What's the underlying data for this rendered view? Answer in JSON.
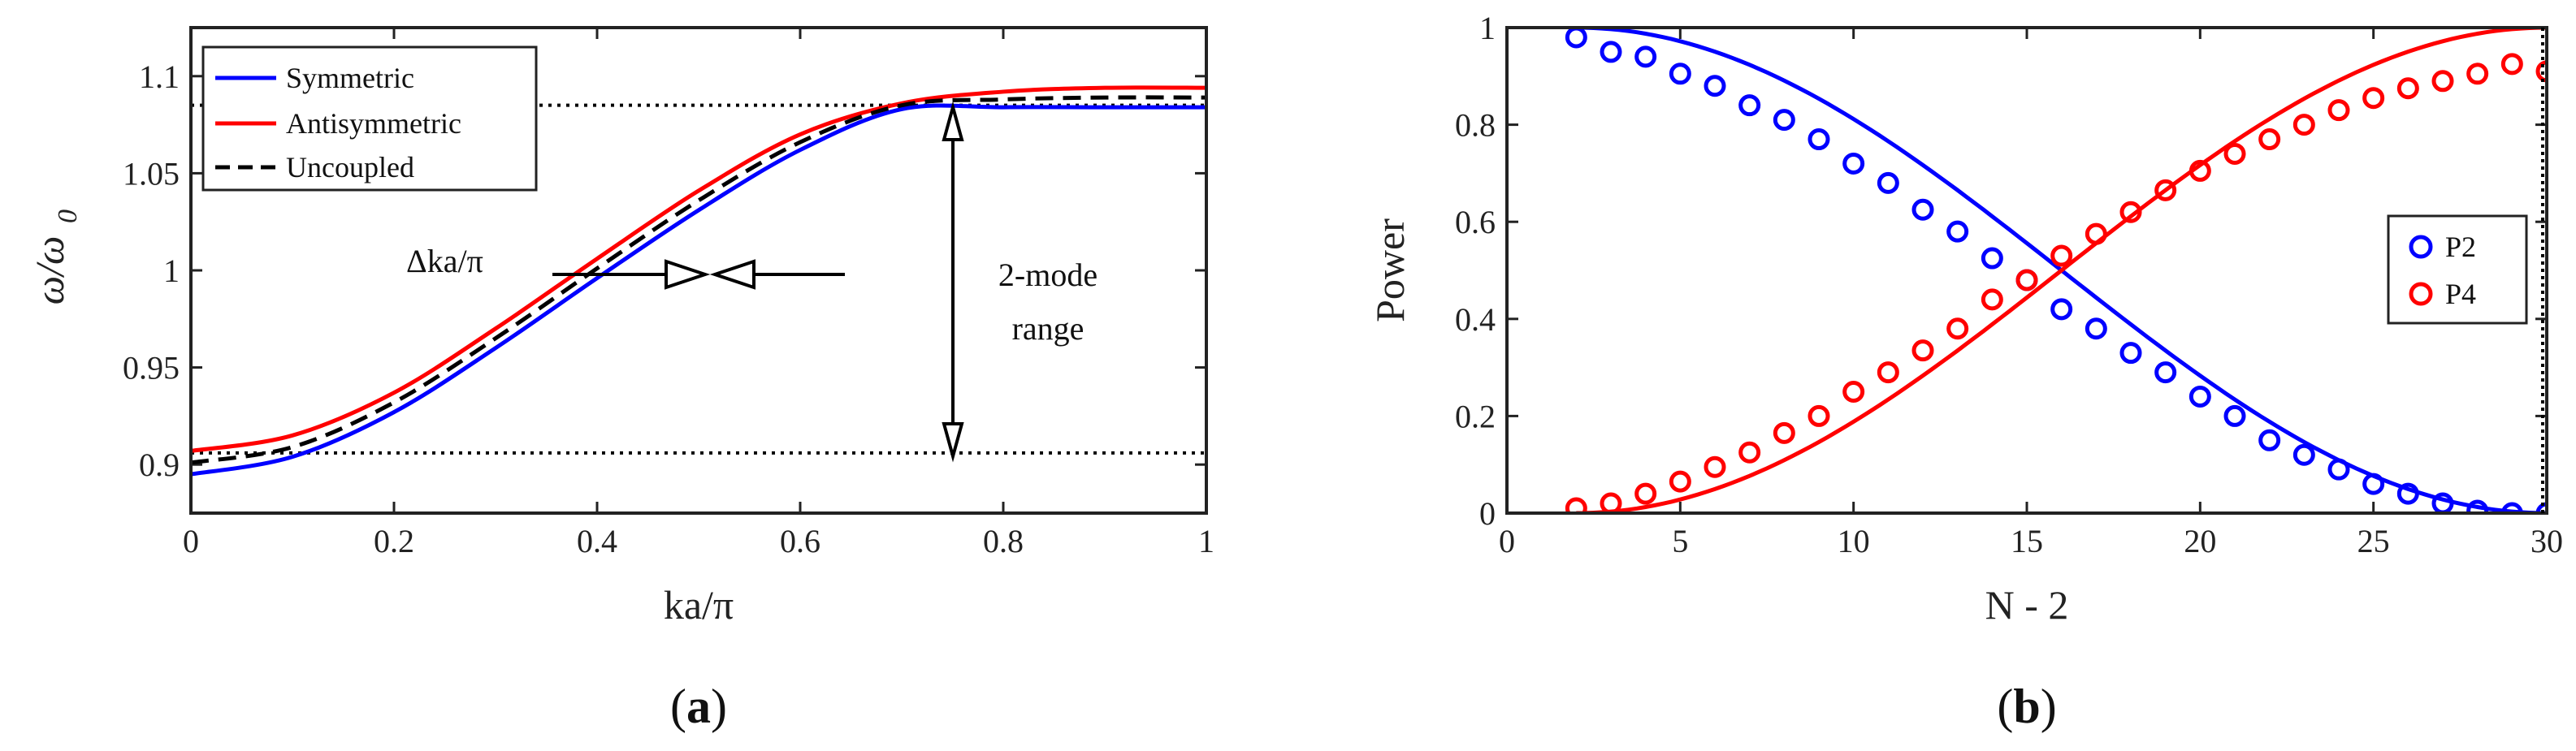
{
  "chart_data": [
    {
      "type": "line",
      "panel_label_open": "(",
      "panel_label_letter": "a",
      "panel_label_close": ")",
      "xlabel": "ka/π",
      "ylabel_main": "ω/ω",
      "ylabel_sub": "0",
      "xlim": [
        0,
        1
      ],
      "ylim": [
        0.875,
        1.125
      ],
      "xticks": [
        0,
        0.2,
        0.4,
        0.6,
        0.8,
        1
      ],
      "xtick_labels": [
        "0",
        "0.2",
        "0.4",
        "0.6",
        "0.8",
        "1"
      ],
      "yticks": [
        0.9,
        0.95,
        1,
        1.05,
        1.1
      ],
      "ytick_labels": [
        "0.9",
        "0.95",
        "1",
        "1.05",
        "1.1"
      ],
      "series": [
        {
          "name": "Symmetric",
          "color": "#0000ff",
          "style": "solid",
          "x": [
            0,
            0.1,
            0.2,
            0.3,
            0.4,
            0.5,
            0.6,
            0.7,
            0.8,
            0.9,
            1.0
          ],
          "y": [
            0.895,
            0.904,
            0.927,
            0.96,
            0.996,
            1.031,
            1.062,
            1.083,
            1.084,
            1.084,
            1.084
          ]
        },
        {
          "name": "Antisymmetric",
          "color": "#ff0000",
          "style": "solid",
          "x": [
            0,
            0.1,
            0.2,
            0.3,
            0.4,
            0.5,
            0.6,
            0.7,
            0.8,
            0.9,
            1.0
          ],
          "y": [
            0.907,
            0.915,
            0.937,
            0.97,
            1.006,
            1.041,
            1.07,
            1.086,
            1.092,
            1.094,
            1.094
          ]
        },
        {
          "name": "Uncoupled",
          "color": "#000000",
          "style": "dashed",
          "x": [
            0,
            0.1,
            0.2,
            0.3,
            0.4,
            0.5,
            0.6,
            0.7,
            0.8,
            0.9,
            1.0
          ],
          "y": [
            0.901,
            0.909,
            0.932,
            0.965,
            1.001,
            1.036,
            1.066,
            1.085,
            1.088,
            1.089,
            1.089
          ]
        }
      ],
      "reference_lines": [
        {
          "y": 1.085,
          "style": "dotted"
        },
        {
          "y": 0.906,
          "style": "dotted"
        }
      ],
      "annotations": [
        {
          "text": "Δka/π",
          "x": 0.5,
          "y": 1.0
        },
        {
          "text_line1": "2-mode",
          "text_line2": "range",
          "x": 0.75,
          "y_from": 0.906,
          "y_to": 1.085
        }
      ],
      "legend_position": "top-left"
    },
    {
      "type": "line",
      "panel_label_open": "(",
      "panel_label_letter": "b",
      "panel_label_close": ")",
      "xlabel": "N - 2",
      "ylabel": "Power",
      "xlim": [
        0,
        30
      ],
      "ylim": [
        0,
        1
      ],
      "xticks": [
        0,
        5,
        10,
        15,
        20,
        25,
        30
      ],
      "xtick_labels": [
        "0",
        "5",
        "10",
        "15",
        "20",
        "25",
        "30"
      ],
      "yticks": [
        0,
        0.2,
        0.4,
        0.6,
        0.8,
        1
      ],
      "ytick_labels": [
        "0",
        "0.2",
        "0.4",
        "0.6",
        "0.8",
        "1"
      ],
      "series": [
        {
          "name": "P2",
          "color": "#0000ff",
          "marker": "circle",
          "x": [
            2,
            3,
            4,
            5,
            6,
            7,
            8,
            9,
            10,
            11,
            12,
            13,
            14,
            15,
            16,
            17,
            18,
            19,
            20,
            21,
            22,
            23,
            24,
            25,
            26,
            27,
            28,
            29,
            30
          ],
          "y": [
            0.98,
            0.95,
            0.94,
            0.905,
            0.88,
            0.84,
            0.81,
            0.77,
            0.72,
            0.68,
            0.625,
            0.58,
            0.525,
            0.48,
            0.42,
            0.38,
            0.33,
            0.29,
            0.24,
            0.2,
            0.15,
            0.12,
            0.09,
            0.06,
            0.04,
            0.02,
            0.005,
            0.0,
            0.0
          ]
        },
        {
          "name": "P4",
          "color": "#ff0000",
          "marker": "circle",
          "x": [
            2,
            3,
            4,
            5,
            6,
            7,
            8,
            9,
            10,
            11,
            12,
            13,
            14,
            15,
            16,
            17,
            18,
            19,
            20,
            21,
            22,
            23,
            24,
            25,
            26,
            27,
            28,
            29,
            30
          ],
          "y": [
            0.01,
            0.02,
            0.04,
            0.065,
            0.095,
            0.125,
            0.165,
            0.2,
            0.25,
            0.29,
            0.335,
            0.38,
            0.44,
            0.48,
            0.53,
            0.575,
            0.62,
            0.665,
            0.705,
            0.74,
            0.77,
            0.8,
            0.83,
            0.855,
            0.875,
            0.89,
            0.905,
            0.925,
            0.91
          ]
        }
      ],
      "fit_lines": [
        {
          "name": "P2 fit",
          "color": "#0000ff",
          "shape": "cos2",
          "period_x": 28
        },
        {
          "name": "P4 fit",
          "color": "#ff0000",
          "shape": "sin2",
          "period_x": 28
        }
      ],
      "legend_position": "right"
    }
  ]
}
